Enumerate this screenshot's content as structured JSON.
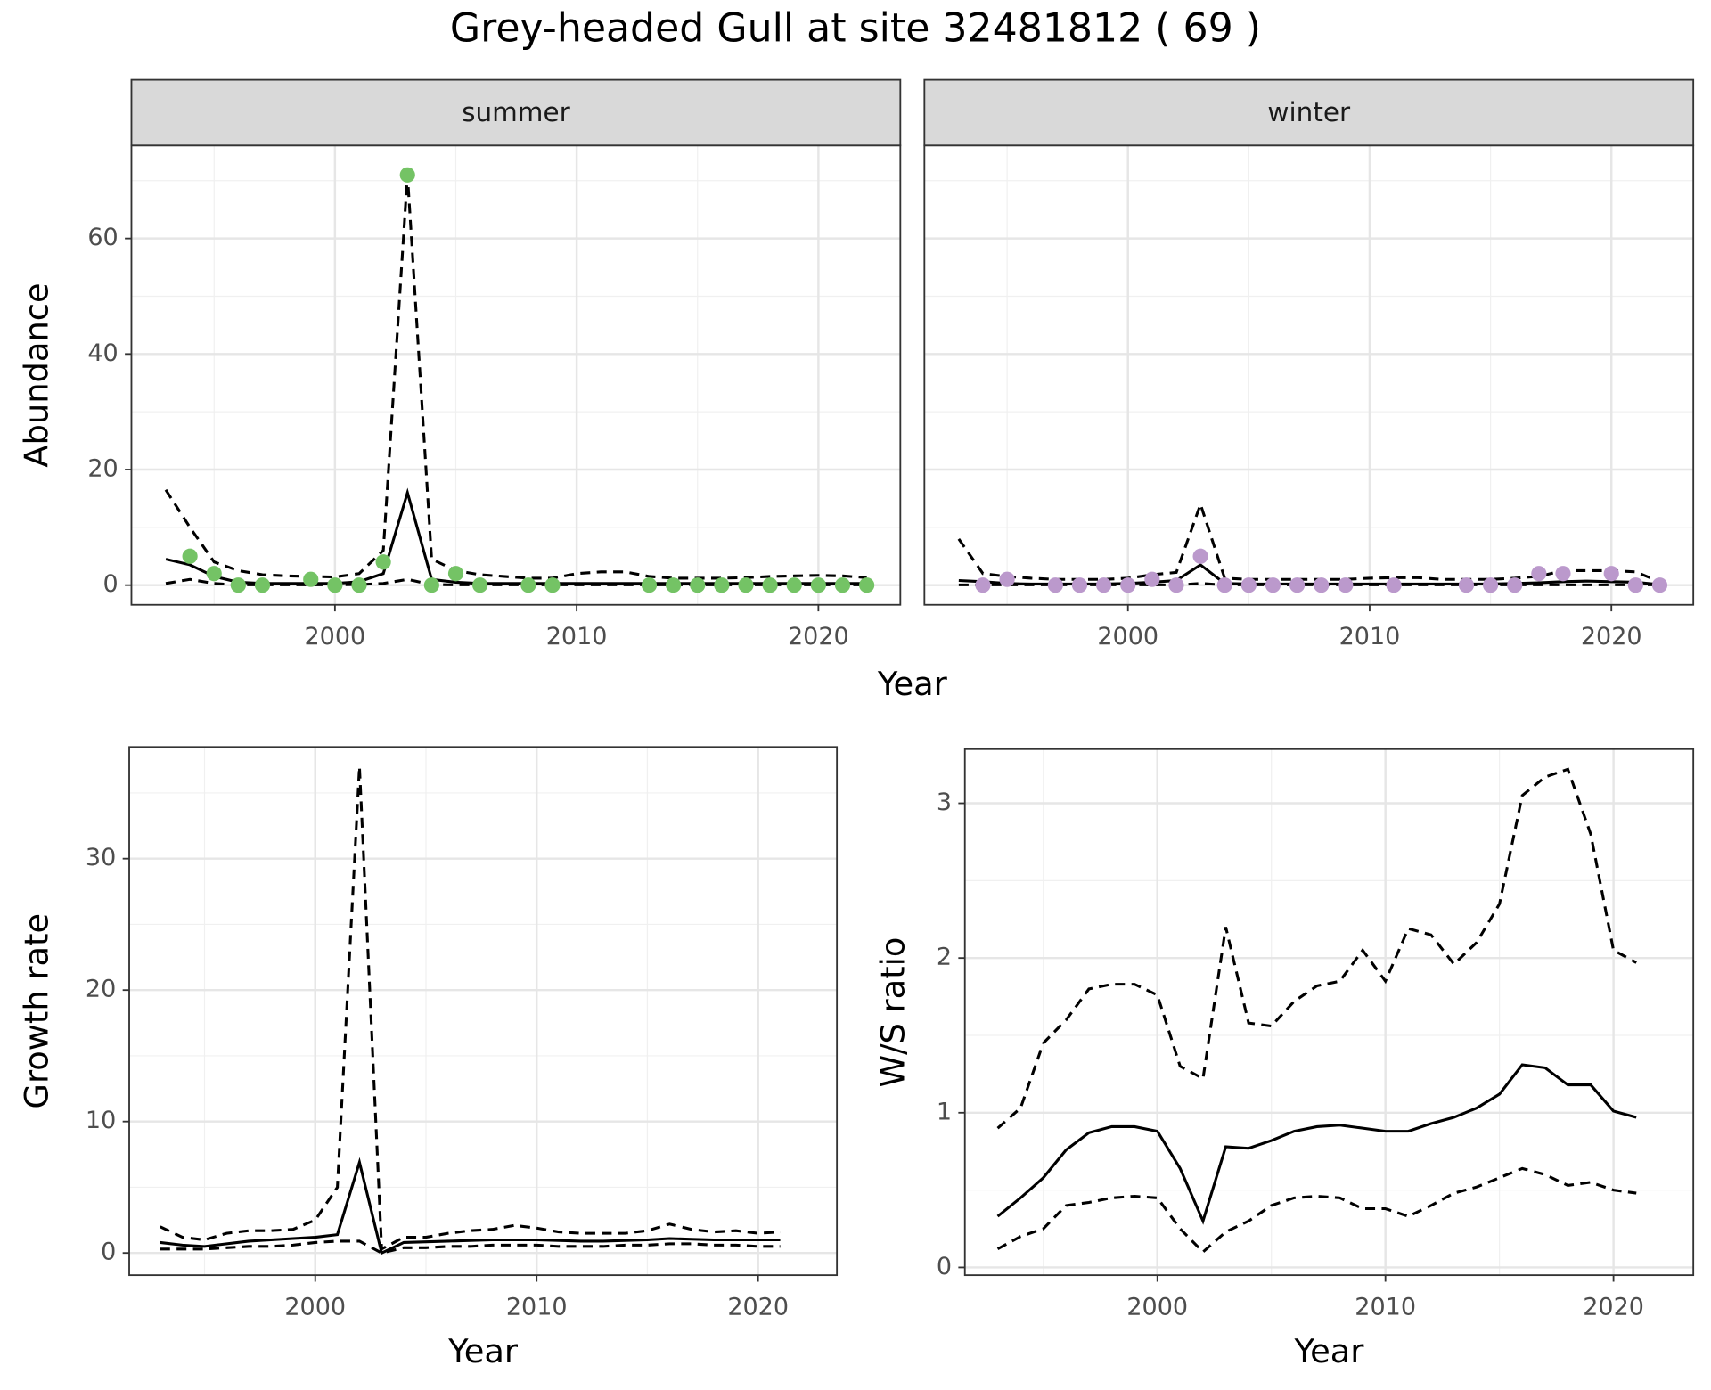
{
  "title": "Grey-headed Gull at site 32481812 ( 69 )",
  "chart_data": [
    {
      "type": "facet-line",
      "x_label": "Year",
      "y_label": "Abundance",
      "xlim": [
        1991.58,
        2023.39
      ],
      "ylim": [
        -3.4,
        76.1
      ],
      "xticks": [
        2000,
        2010,
        2020
      ],
      "yticks": [
        0,
        20,
        40,
        60
      ],
      "minor_xticks": [
        1995,
        2005,
        2015
      ],
      "minor_yticks": [
        10,
        30,
        50,
        70
      ],
      "grid": true,
      "facets": [
        {
          "title": "summer",
          "x": [
            1993,
            1994,
            1995,
            1996,
            1997,
            1998,
            1999,
            2000,
            2001,
            2002,
            2003,
            2004,
            2005,
            2006,
            2007,
            2008,
            2009,
            2010,
            2011,
            2012,
            2013,
            2014,
            2015,
            2016,
            2017,
            2018,
            2019,
            2020,
            2021,
            2022
          ],
          "series": [
            {
              "style": "solid",
              "values": [
                4.5,
                3.5,
                1.5,
                0.5,
                0.3,
                0.3,
                0.3,
                0.3,
                0.6,
                2,
                16,
                1,
                0.5,
                0.3,
                0.3,
                0.3,
                0.3,
                0.3,
                0.3,
                0.3,
                0.3,
                0.3,
                0.3,
                0.3,
                0.3,
                0.3,
                0.3,
                0.3,
                0.3,
                0.3
              ]
            },
            {
              "style": "dashed",
              "values": [
                16.5,
                10,
                4,
                2.5,
                1.8,
                1.6,
                1.5,
                1.4,
                2,
                6,
                71,
                4.5,
                2.5,
                1.8,
                1.5,
                1.2,
                1.2,
                2,
                2.3,
                2.3,
                1.5,
                1.2,
                1.2,
                1.2,
                1.3,
                1.5,
                1.6,
                1.7,
                1.6,
                1.3
              ]
            },
            {
              "style": "dashed",
              "values": [
                0.3,
                1,
                0.3,
                0.05,
                0.05,
                0.05,
                0.05,
                0.05,
                0.1,
                0.3,
                1,
                0.1,
                0.05,
                0.05,
                0.05,
                0.05,
                0.05,
                0.05,
                0.05,
                0.05,
                0.05,
                0.05,
                0.05,
                0.05,
                0.05,
                0.05,
                0.05,
                0.05,
                0.05,
                0.05
              ]
            }
          ],
          "points": {
            "color": "#74c365",
            "x": [
              1994,
              1995,
              1996,
              1997,
              1999,
              2000,
              2001,
              2002,
              2003,
              2004,
              2005,
              2006,
              2008,
              2009,
              2013,
              2014,
              2015,
              2016,
              2017,
              2018,
              2019,
              2020,
              2021,
              2022
            ],
            "values": [
              5,
              2,
              0,
              0,
              1,
              0,
              0,
              4,
              71,
              0,
              2,
              0,
              0,
              0,
              0,
              0,
              0,
              0,
              0,
              0,
              0,
              0,
              0,
              0
            ]
          }
        },
        {
          "title": "winter",
          "x": [
            1993,
            1994,
            1995,
            1996,
            1997,
            1998,
            1999,
            2000,
            2001,
            2002,
            2003,
            2004,
            2005,
            2006,
            2007,
            2008,
            2009,
            2010,
            2011,
            2012,
            2013,
            2014,
            2015,
            2016,
            2017,
            2018,
            2019,
            2020,
            2021,
            2022
          ],
          "series": [
            {
              "style": "solid",
              "values": [
                0.8,
                0.6,
                0.3,
                0.2,
                0.2,
                0.2,
                0.2,
                0.3,
                0.5,
                0.8,
                3.5,
                0.3,
                0.2,
                0.2,
                0.2,
                0.2,
                0.2,
                0.2,
                0.2,
                0.2,
                0.2,
                0.2,
                0.2,
                0.3,
                0.4,
                0.6,
                0.7,
                0.6,
                0.5,
                0.1
              ]
            },
            {
              "style": "dashed",
              "values": [
                8,
                2,
                1.5,
                1.2,
                1,
                1,
                1,
                1.2,
                1.8,
                2.2,
                14,
                1.2,
                1,
                1,
                1,
                1,
                1,
                1.2,
                1.3,
                1.3,
                1,
                1,
                1,
                1.2,
                1.5,
                2.5,
                2.5,
                2.5,
                2.3,
                0.6
              ]
            },
            {
              "style": "dashed",
              "values": [
                0.05,
                0.05,
                0.05,
                0.05,
                0.05,
                0.05,
                0.05,
                0.05,
                0.05,
                0.05,
                0.3,
                0.05,
                0.05,
                0.05,
                0.05,
                0.05,
                0.05,
                0.05,
                0.05,
                0.05,
                0.05,
                0.05,
                0.05,
                0.05,
                0.05,
                0.05,
                0.05,
                0.05,
                0.05,
                0.05
              ]
            }
          ],
          "points": {
            "color": "#bb99cc",
            "x": [
              1994,
              1995,
              1997,
              1998,
              1999,
              2000,
              2001,
              2002,
              2003,
              2004,
              2005,
              2006,
              2007,
              2008,
              2009,
              2011,
              2014,
              2015,
              2016,
              2017,
              2018,
              2020,
              2021,
              2022
            ],
            "values": [
              0,
              1,
              0,
              0,
              0,
              0,
              1,
              0,
              5,
              0,
              0,
              0,
              0,
              0,
              0,
              0,
              0,
              0,
              0,
              2,
              2,
              2,
              0,
              0
            ]
          }
        }
      ]
    },
    {
      "type": "line",
      "x_label": "Year",
      "y_label": "Growth rate",
      "xlim": [
        1991.6,
        2023.56
      ],
      "ylim": [
        -1.69,
        38.5
      ],
      "xticks": [
        2000,
        2010,
        2020
      ],
      "yticks": [
        0,
        10,
        20,
        30
      ],
      "minor_xticks": [
        1995,
        2005,
        2015
      ],
      "minor_yticks": [
        5,
        15,
        25,
        35
      ],
      "grid": true,
      "x": [
        1993,
        1994,
        1995,
        1996,
        1997,
        1998,
        1999,
        2000,
        2001,
        2002,
        2003,
        2004,
        2005,
        2006,
        2007,
        2008,
        2009,
        2010,
        2011,
        2012,
        2013,
        2014,
        2015,
        2016,
        2017,
        2018,
        2019,
        2020,
        2021
      ],
      "series": [
        {
          "style": "solid",
          "values": [
            0.8,
            0.6,
            0.5,
            0.7,
            0.9,
            1.0,
            1.1,
            1.2,
            1.4,
            6.9,
            0,
            0.8,
            0.85,
            0.9,
            0.95,
            1,
            1,
            1,
            0.95,
            0.9,
            0.9,
            0.95,
            1,
            1.1,
            1.05,
            1,
            1,
            1,
            1
          ]
        },
        {
          "style": "dashed",
          "values": [
            2.0,
            1.2,
            1.0,
            1.5,
            1.7,
            1.7,
            1.8,
            2.5,
            5,
            37,
            0.3,
            1.2,
            1.2,
            1.5,
            1.7,
            1.8,
            2.1,
            1.9,
            1.6,
            1.5,
            1.5,
            1.5,
            1.7,
            2.2,
            1.8,
            1.6,
            1.7,
            1.5,
            1.6
          ]
        },
        {
          "style": "dashed",
          "values": [
            0.3,
            0.3,
            0.3,
            0.4,
            0.5,
            0.5,
            0.6,
            0.8,
            0.9,
            0.9,
            0,
            0.4,
            0.4,
            0.5,
            0.5,
            0.6,
            0.6,
            0.6,
            0.5,
            0.5,
            0.5,
            0.6,
            0.6,
            0.7,
            0.7,
            0.6,
            0.6,
            0.5,
            0.5
          ]
        }
      ]
    },
    {
      "type": "line",
      "x_label": "Year",
      "y_label": "W/S ratio",
      "xlim": [
        1991.56,
        2023.5
      ],
      "ylim": [
        -0.05,
        3.35
      ],
      "xticks": [
        2000,
        2010,
        2020
      ],
      "yticks": [
        0,
        1,
        2,
        3
      ],
      "minor_xticks": [
        1995,
        2005,
        2015
      ],
      "minor_yticks": [
        0.5,
        1.5,
        2.5
      ],
      "grid": true,
      "x": [
        1993,
        1994,
        1995,
        1996,
        1997,
        1998,
        1999,
        2000,
        2001,
        2002,
        2003,
        2004,
        2005,
        2006,
        2007,
        2008,
        2009,
        2010,
        2011,
        2012,
        2013,
        2014,
        2015,
        2016,
        2017,
        2018,
        2019,
        2020,
        2021
      ],
      "series": [
        {
          "style": "solid",
          "values": [
            0.33,
            0.45,
            0.58,
            0.76,
            0.87,
            0.91,
            0.91,
            0.88,
            0.64,
            0.3,
            0.78,
            0.77,
            0.82,
            0.88,
            0.91,
            0.92,
            0.9,
            0.88,
            0.88,
            0.93,
            0.97,
            1.03,
            1.12,
            1.31,
            1.29,
            1.18,
            1.18,
            1.01,
            0.97
          ]
        },
        {
          "style": "dashed",
          "values": [
            0.9,
            1.03,
            1.45,
            1.6,
            1.8,
            1.83,
            1.83,
            1.76,
            1.3,
            1.22,
            2.2,
            1.58,
            1.56,
            1.72,
            1.82,
            1.85,
            2.05,
            1.85,
            2.19,
            2.15,
            1.96,
            2.1,
            2.35,
            3.05,
            3.17,
            3.22,
            2.8,
            2.05,
            1.97
          ]
        },
        {
          "style": "dashed",
          "values": [
            0.12,
            0.2,
            0.25,
            0.4,
            0.42,
            0.45,
            0.46,
            0.45,
            0.25,
            0.1,
            0.23,
            0.3,
            0.4,
            0.45,
            0.46,
            0.45,
            0.38,
            0.38,
            0.33,
            0.4,
            0.48,
            0.52,
            0.58,
            0.64,
            0.6,
            0.53,
            0.55,
            0.5,
            0.48
          ]
        }
      ]
    }
  ]
}
